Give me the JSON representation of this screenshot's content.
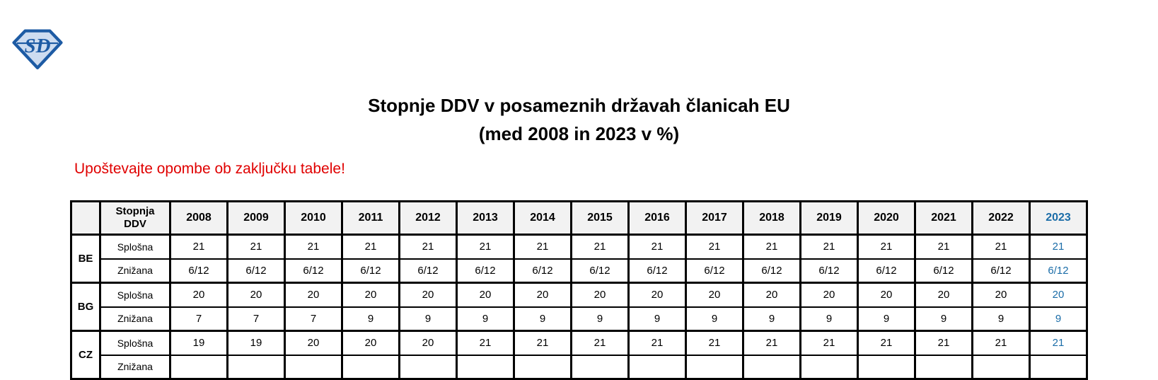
{
  "page": {
    "logo_text": "SD",
    "title_line1": "Stopnje DDV v posameznih državah članicah EU",
    "title_line2": "(med 2008 in 2023 v %)",
    "notice": "Upoštevajte opombe ob zaključku tabele!"
  },
  "colors": {
    "accent_blue": "#1b6da8",
    "notice_red": "#e00000",
    "header_bg": "#f2f2f2",
    "border_black": "#000000",
    "logo_outline_blue": "#1d5ba4",
    "logo_fill_blue": "#cddcf0"
  },
  "table": {
    "rate_type_header": "Stopnja DDV",
    "years": [
      "2008",
      "2009",
      "2010",
      "2011",
      "2012",
      "2013",
      "2014",
      "2015",
      "2016",
      "2017",
      "2018",
      "2019",
      "2020",
      "2021",
      "2022",
      "2023"
    ],
    "highlight_year": "2023",
    "row_labels": {
      "general": "Splošna",
      "reduced": "Znižana"
    },
    "countries": [
      {
        "code": "BE",
        "rows": [
          {
            "label": "Splošna",
            "values": [
              "21",
              "21",
              "21",
              "21",
              "21",
              "21",
              "21",
              "21",
              "21",
              "21",
              "21",
              "21",
              "21",
              "21",
              "21",
              "21"
            ]
          },
          {
            "label": "Znižana",
            "values": [
              "6/12",
              "6/12",
              "6/12",
              "6/12",
              "6/12",
              "6/12",
              "6/12",
              "6/12",
              "6/12",
              "6/12",
              "6/12",
              "6/12",
              "6/12",
              "6/12",
              "6/12",
              "6/12"
            ]
          }
        ]
      },
      {
        "code": "BG",
        "rows": [
          {
            "label": "Splošna",
            "values": [
              "20",
              "20",
              "20",
              "20",
              "20",
              "20",
              "20",
              "20",
              "20",
              "20",
              "20",
              "20",
              "20",
              "20",
              "20",
              "20"
            ]
          },
          {
            "label": "Znižana",
            "values": [
              "7",
              "7",
              "7",
              "9",
              "9",
              "9",
              "9",
              "9",
              "9",
              "9",
              "9",
              "9",
              "9",
              "9",
              "9",
              "9"
            ]
          }
        ]
      },
      {
        "code": "CZ",
        "rows": [
          {
            "label": "Splošna",
            "values": [
              "19",
              "19",
              "20",
              "20",
              "20",
              "21",
              "21",
              "21",
              "21",
              "21",
              "21",
              "21",
              "21",
              "21",
              "21",
              "21"
            ]
          },
          {
            "label": "Znižana",
            "values": [
              "",
              "",
              "",
              "",
              "",
              "",
              "",
              "",
              "",
              "",
              "",
              "",
              "",
              "",
              "",
              ""
            ]
          }
        ]
      }
    ]
  }
}
